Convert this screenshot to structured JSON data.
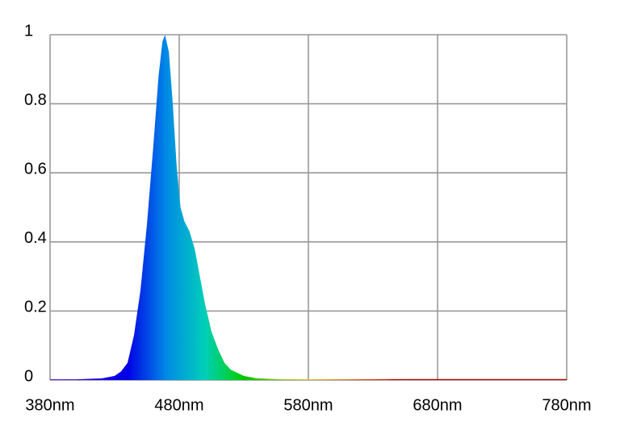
{
  "chart_data": {
    "type": "area",
    "x": [
      380,
      400,
      420,
      430,
      435,
      440,
      445,
      450,
      455,
      460,
      464,
      467,
      469,
      472,
      475,
      478,
      481,
      484,
      488,
      492,
      496,
      500,
      505,
      510,
      515,
      520,
      530,
      540,
      560,
      600,
      680,
      780
    ],
    "values": [
      0.002,
      0.002,
      0.005,
      0.012,
      0.025,
      0.05,
      0.13,
      0.26,
      0.45,
      0.68,
      0.88,
      0.98,
      1.0,
      0.95,
      0.8,
      0.62,
      0.5,
      0.46,
      0.43,
      0.38,
      0.3,
      0.22,
      0.14,
      0.09,
      0.05,
      0.03,
      0.012,
      0.005,
      0.002,
      0.002,
      0.003,
      0.003
    ],
    "xlim": [
      380,
      780
    ],
    "xticks": [
      {
        "value": 380,
        "label": "380nm"
      },
      {
        "value": 480,
        "label": "480nm"
      },
      {
        "value": 580,
        "label": "580nm"
      },
      {
        "value": 680,
        "label": "680nm"
      },
      {
        "value": 780,
        "label": "780nm"
      }
    ],
    "ylim": [
      0,
      1
    ],
    "yticks": [
      0,
      0.2,
      0.4,
      0.6,
      0.8,
      1
    ],
    "grid": true
  }
}
